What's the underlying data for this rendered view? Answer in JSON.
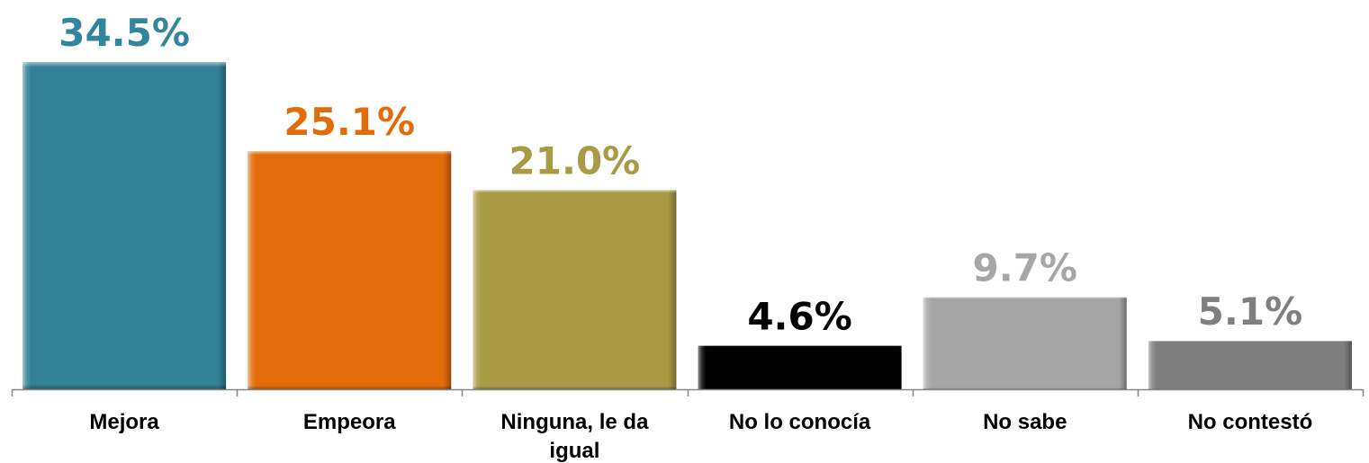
{
  "chart_data": {
    "type": "bar",
    "title": "",
    "xlabel": "",
    "ylabel": "",
    "ylim": [
      0,
      36
    ],
    "grid": false,
    "legend": "none",
    "categories": [
      "Mejora",
      "Empeora",
      "Ninguna, le da igual",
      "No lo conocía",
      "No sabe",
      "No contestó"
    ],
    "category_lines": [
      [
        "Mejora"
      ],
      [
        "Empeora"
      ],
      [
        "Ninguna, le da",
        "igual"
      ],
      [
        "No lo conocía"
      ],
      [
        "No sabe"
      ],
      [
        "No contestó"
      ]
    ],
    "values": [
      34.5,
      25.1,
      21.0,
      4.6,
      9.7,
      5.1
    ],
    "value_labels": [
      "34.5%",
      "25.1%",
      "21.0%",
      "4.6%",
      "9.7%",
      "5.1%"
    ],
    "bar_colors": [
      "#338196",
      "#E36C0A",
      "#A99A46",
      "#000000",
      "#A6A6A6",
      "#7F7F7F"
    ],
    "label_colors": [
      "#31859C",
      "#E36C0A",
      "#A99A46",
      "#000000",
      "#A6A6A6",
      "#7F7F7F"
    ]
  }
}
